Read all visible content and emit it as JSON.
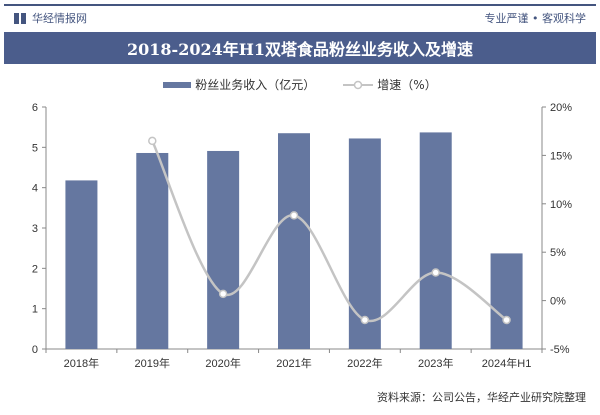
{
  "header": {
    "brand": "华经情报网",
    "slogan": "专业严谨 • 客观科学"
  },
  "footer": {
    "source": "资料来源：公司公告，华经产业研究院整理"
  },
  "chart_data": {
    "type": "bar+line",
    "title": "2018-2024年H1双塔食品粉丝业务收入及增速",
    "categories": [
      "2018年",
      "2019年",
      "2020年",
      "2021年",
      "2022年",
      "2023年",
      "2024年H1"
    ],
    "series": [
      {
        "name": "粉丝业务收入（亿元）",
        "type": "bar",
        "axis": "left",
        "color": "#6577a0",
        "values": [
          4.18,
          4.86,
          4.91,
          5.35,
          5.22,
          5.37,
          2.37
        ]
      },
      {
        "name": "增速（%）",
        "type": "line",
        "axis": "right",
        "color": "#c4c4c4",
        "values": [
          null,
          16.5,
          0.7,
          8.8,
          -2.0,
          2.9,
          -2.0
        ]
      }
    ],
    "y_left": {
      "range": [
        0,
        6
      ],
      "ticks": [
        "0",
        "1",
        "2",
        "3",
        "4",
        "5",
        "6"
      ]
    },
    "y_right": {
      "range": [
        -5,
        20
      ],
      "ticks": [
        "-5%",
        "0%",
        "5%",
        "10%",
        "15%",
        "20%"
      ]
    },
    "legend": "top",
    "grid": false
  }
}
